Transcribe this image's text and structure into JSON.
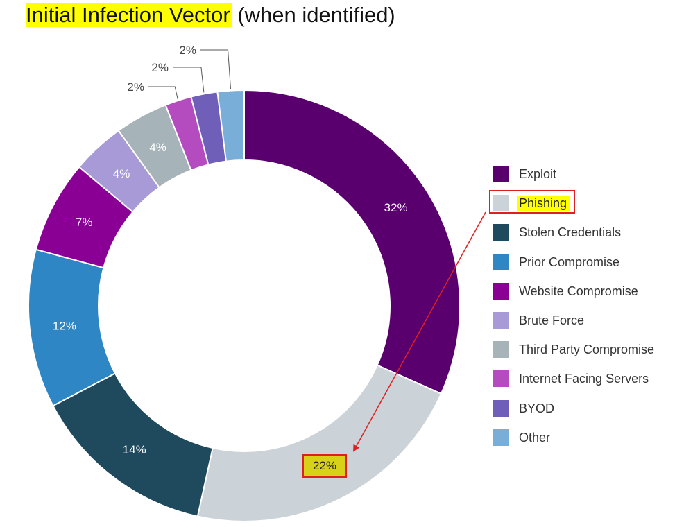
{
  "title": {
    "highlighted": "Initial Infection Vector",
    "rest": "(when identified)"
  },
  "chart_data": {
    "type": "pie",
    "variant": "donut",
    "title": "Initial Infection Vector (when identified)",
    "legend_position": "right",
    "start": "top, clockwise",
    "series": [
      {
        "name": "Exploit",
        "value": 32,
        "label": "32%",
        "color": "#5a006e"
      },
      {
        "name": "Phishing",
        "value": 22,
        "label": "22%",
        "color": "#ccd3d8"
      },
      {
        "name": "Stolen Credentials",
        "value": 14,
        "label": "14%",
        "color": "#1f4a5e"
      },
      {
        "name": "Prior Compromise",
        "value": 12,
        "label": "12%",
        "color": "#2e86c5"
      },
      {
        "name": "Website Compromise",
        "value": 7,
        "label": "7%",
        "color": "#8a0095"
      },
      {
        "name": "Brute Force",
        "value": 4,
        "label": "4%",
        "color": "#a79ad6"
      },
      {
        "name": "Third Party Compromise",
        "value": 4,
        "label": "4%",
        "color": "#a6b3b8"
      },
      {
        "name": "Internet Facing Servers",
        "value": 2,
        "label": "2%",
        "color": "#b44cc0"
      },
      {
        "name": "BYOD",
        "value": 2,
        "label": "2%",
        "color": "#6f5fb8"
      },
      {
        "name": "Other",
        "value": 2,
        "label": "2%",
        "color": "#79aed8"
      }
    ],
    "highlight": {
      "series": "Phishing",
      "label": "22%",
      "box_color": "#e02020",
      "fill": "#d7d219"
    }
  }
}
